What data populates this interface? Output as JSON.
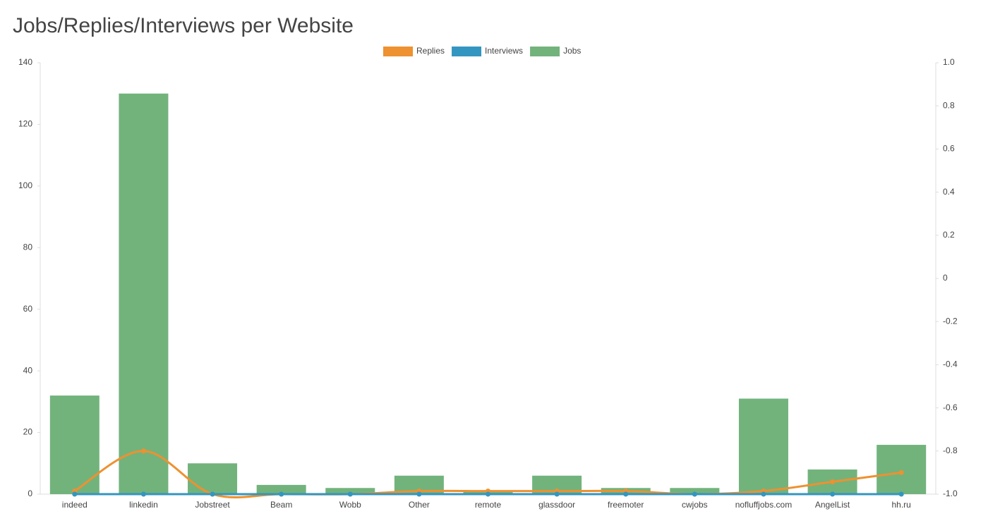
{
  "chart_data": {
    "type": "bar-line",
    "title": "Jobs/Replies/Interviews per Website",
    "categories": [
      "indeed",
      "linkedin",
      "Jobstreet",
      "Beam",
      "Wobb",
      "Other",
      "remote",
      "glassdoor",
      "freemoter",
      "cwjobs",
      "nofluffjobs.com",
      "AngelList",
      "hh.ru"
    ],
    "series": [
      {
        "name": "Replies",
        "color": "#ee9130",
        "kind": "line",
        "values": [
          1,
          14,
          0,
          0,
          0,
          1,
          1,
          1,
          1,
          0,
          1,
          4,
          7
        ]
      },
      {
        "name": "Interviews",
        "color": "#3396c0",
        "kind": "line",
        "values": [
          0,
          0,
          0,
          0,
          0,
          0,
          0,
          0,
          0,
          0,
          0,
          0,
          0
        ]
      },
      {
        "name": "Jobs",
        "color": "#72b37c",
        "kind": "bar",
        "values": [
          32,
          130,
          10,
          3,
          2,
          6,
          1,
          6,
          2,
          2,
          31,
          8,
          16
        ]
      }
    ],
    "ylim": [
      0,
      140
    ],
    "yticks": [
      0,
      20,
      40,
      60,
      80,
      100,
      120,
      140
    ],
    "y2lim": [
      -1,
      1
    ],
    "y2ticks": [
      {
        "value": -1,
        "label": "-1.0"
      },
      -0.8,
      -0.6,
      -0.4,
      -0.2,
      0,
      0.2,
      0.4,
      0.6,
      0.8,
      {
        "value": 1,
        "label": "1.0"
      }
    ]
  }
}
